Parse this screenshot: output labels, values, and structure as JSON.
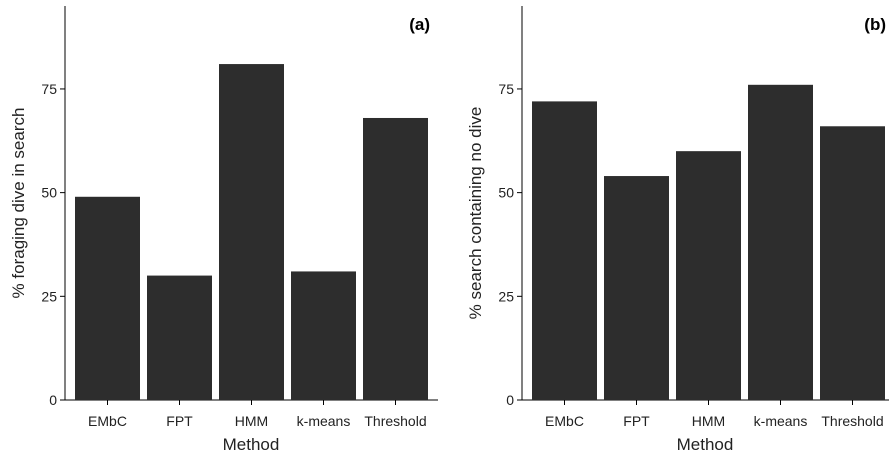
{
  "chart_data": [
    {
      "type": "bar",
      "panel_label": "(a)",
      "xlabel": "Method",
      "ylabel": "% foraging dive in search",
      "categories": [
        "EMbC",
        "FPT",
        "HMM",
        "k-means",
        "Threshold"
      ],
      "values": [
        49,
        30,
        81,
        31,
        68
      ],
      "ylim": [
        0,
        95
      ],
      "yticks": [
        0,
        25,
        50,
        75
      ],
      "grid": false,
      "bar_color": "#2d2d2d"
    },
    {
      "type": "bar",
      "panel_label": "(b)",
      "xlabel": "Method",
      "ylabel": "% search containing no dive",
      "categories": [
        "EMbC",
        "FPT",
        "HMM",
        "k-means",
        "Threshold"
      ],
      "values": [
        72,
        54,
        60,
        76,
        66
      ],
      "ylim": [
        0,
        95
      ],
      "yticks": [
        0,
        25,
        50,
        75
      ],
      "grid": false,
      "bar_color": "#2d2d2d"
    }
  ]
}
